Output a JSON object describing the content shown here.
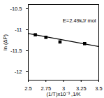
{
  "chart_data": {
    "type": "scatter",
    "x_label": "(1/T)x10⁻³ ,1/K",
    "y_label": "ln (ΔP)",
    "annotation": "E=2.49kJ/ mol",
    "xlim": [
      2.5,
      3.5
    ],
    "xticks": [
      2.5,
      2.75,
      3,
      3.25,
      3.5
    ],
    "ylim": [
      -12.2,
      -10.4
    ],
    "yticks": [
      -12,
      -11.5,
      -11,
      -10.5
    ],
    "series": [
      {
        "type": "scatter",
        "marker": "square",
        "color": "#000000",
        "x": [
          2.6,
          2.75,
          2.95,
          3.3
        ],
        "values": [
          -11.12,
          -11.18,
          -11.29,
          -11.33
        ]
      },
      {
        "type": "line",
        "line_style": "solid",
        "color": "#000000",
        "x": [
          2.5,
          3.5
        ],
        "values": [
          -11.09,
          -11.4
        ]
      }
    ]
  }
}
